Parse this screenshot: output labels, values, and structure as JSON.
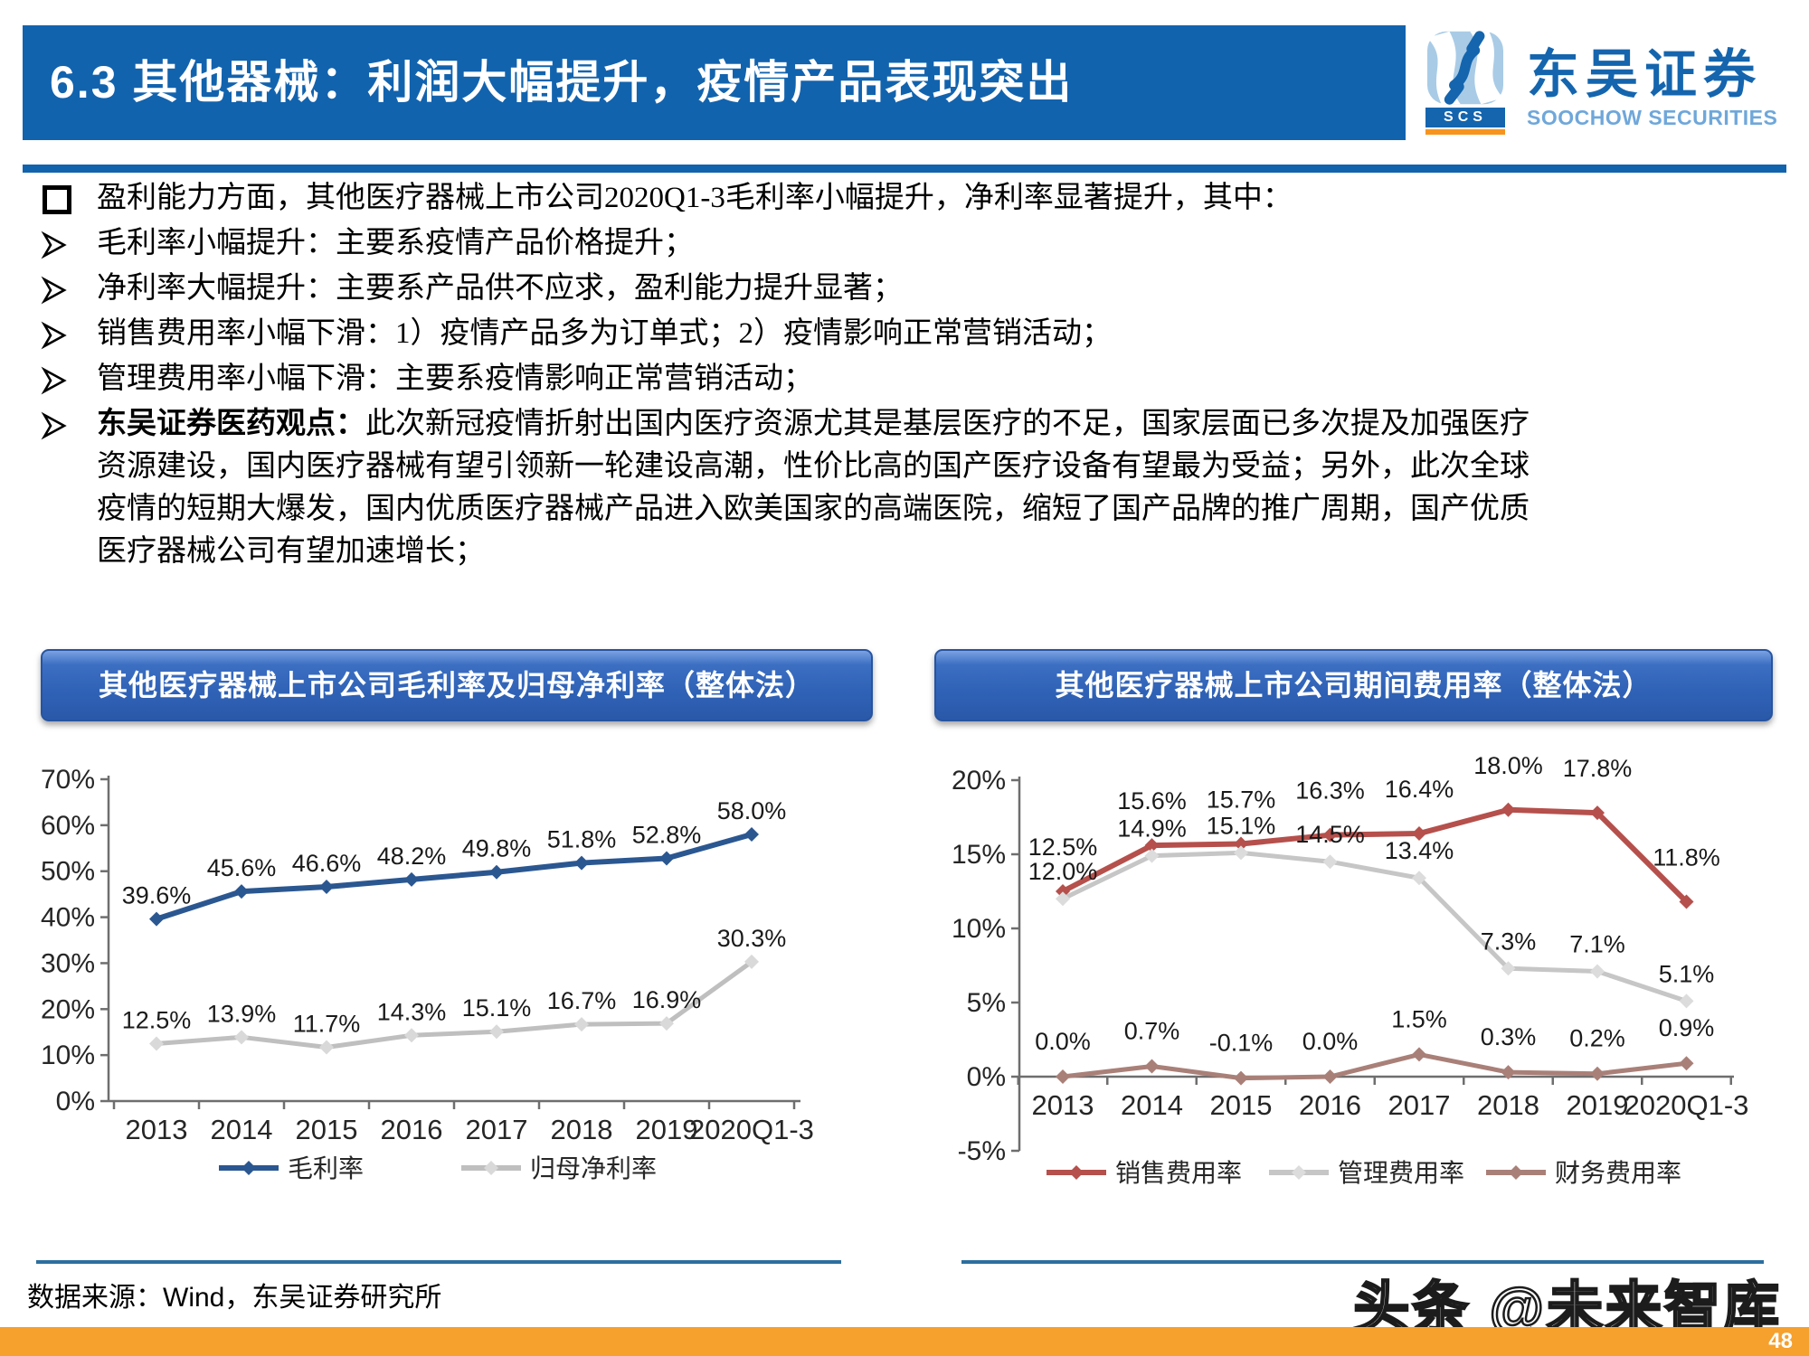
{
  "header": {
    "title": "6.3 其他器械：利润大幅提升，疫情产品表现突出",
    "logo": {
      "abbr": "SCS",
      "cn": "东吴证券",
      "en": "SOOCHOW SECURITIES"
    }
  },
  "bullets": {
    "lead": "盈利能力方面，其他医疗器械上市公司2020Q1-3毛利率小幅提升，净利率显著提升，其中：",
    "items": [
      "毛利率小幅提升：主要系疫情产品价格提升；",
      "净利率大幅提升：主要系产品供不应求，盈利能力提升显著；",
      "销售费用率小幅下滑：1）疫情产品多为订单式；2）疫情影响正常营销活动；",
      "管理费用率小幅下滑：主要系疫情影响正常营销活动；"
    ],
    "opinion_label": "东吴证券医药观点：",
    "opinion_text": "此次新冠疫情折射出国内医疗资源尤其是基层医疗的不足，国家层面已多次提及加强医疗资源建设，国内医疗器械有望引领新一轮建设高潮，性价比高的国产医疗设备有望最为受益；另外，此次全球疫情的短期大爆发，国内优质医疗器械产品进入欧美国家的高端医院，缩短了国产品牌的推广周期，国产优质医疗器械公司有望加速增长；"
  },
  "chart_data": [
    {
      "type": "line",
      "title": "其他医疗器械上市公司毛利率及归母净利率（整体法）",
      "categories": [
        "2013",
        "2014",
        "2015",
        "2016",
        "2017",
        "2018",
        "2019",
        "2020Q1-3"
      ],
      "series": [
        {
          "name": "毛利率",
          "color": "#2b5791",
          "values": [
            39.6,
            45.6,
            46.6,
            48.2,
            49.8,
            51.8,
            52.8,
            58.0
          ]
        },
        {
          "name": "归母净利率",
          "color": "#bfbfbf",
          "values": [
            12.5,
            13.9,
            11.7,
            14.3,
            15.1,
            16.7,
            16.9,
            30.3
          ]
        }
      ],
      "ylim": [
        0,
        70
      ],
      "ytick_step": 10,
      "label_format": "0.1%",
      "grid": false,
      "legend_position": "bottom"
    },
    {
      "type": "line",
      "title": "其他医疗器械上市公司期间费用率（整体法）",
      "categories": [
        "2013",
        "2014",
        "2015",
        "2016",
        "2017",
        "2018",
        "2019",
        "2020Q1-3"
      ],
      "series": [
        {
          "name": "销售费用率",
          "color": "#b5504c",
          "values": [
            12.5,
            15.6,
            15.7,
            16.3,
            16.4,
            18.0,
            17.8,
            11.8
          ]
        },
        {
          "name": "管理费用率",
          "color": "#c6c6c6",
          "values": [
            12.0,
            14.9,
            15.1,
            14.5,
            13.4,
            7.3,
            7.1,
            5.1
          ]
        },
        {
          "name": "财务费用率",
          "color": "#a98078",
          "values": [
            0.0,
            0.7,
            -0.1,
            0.0,
            1.5,
            0.3,
            0.2,
            0.9
          ]
        }
      ],
      "ylim": [
        -5,
        20
      ],
      "ytick_step": 5,
      "label_format": "0.1%",
      "grid": false,
      "legend_position": "bottom"
    }
  ],
  "footer": {
    "source": "数据来源：Wind，东吴证券研究所",
    "watermark": "头条 @未来智库",
    "page": "48"
  }
}
